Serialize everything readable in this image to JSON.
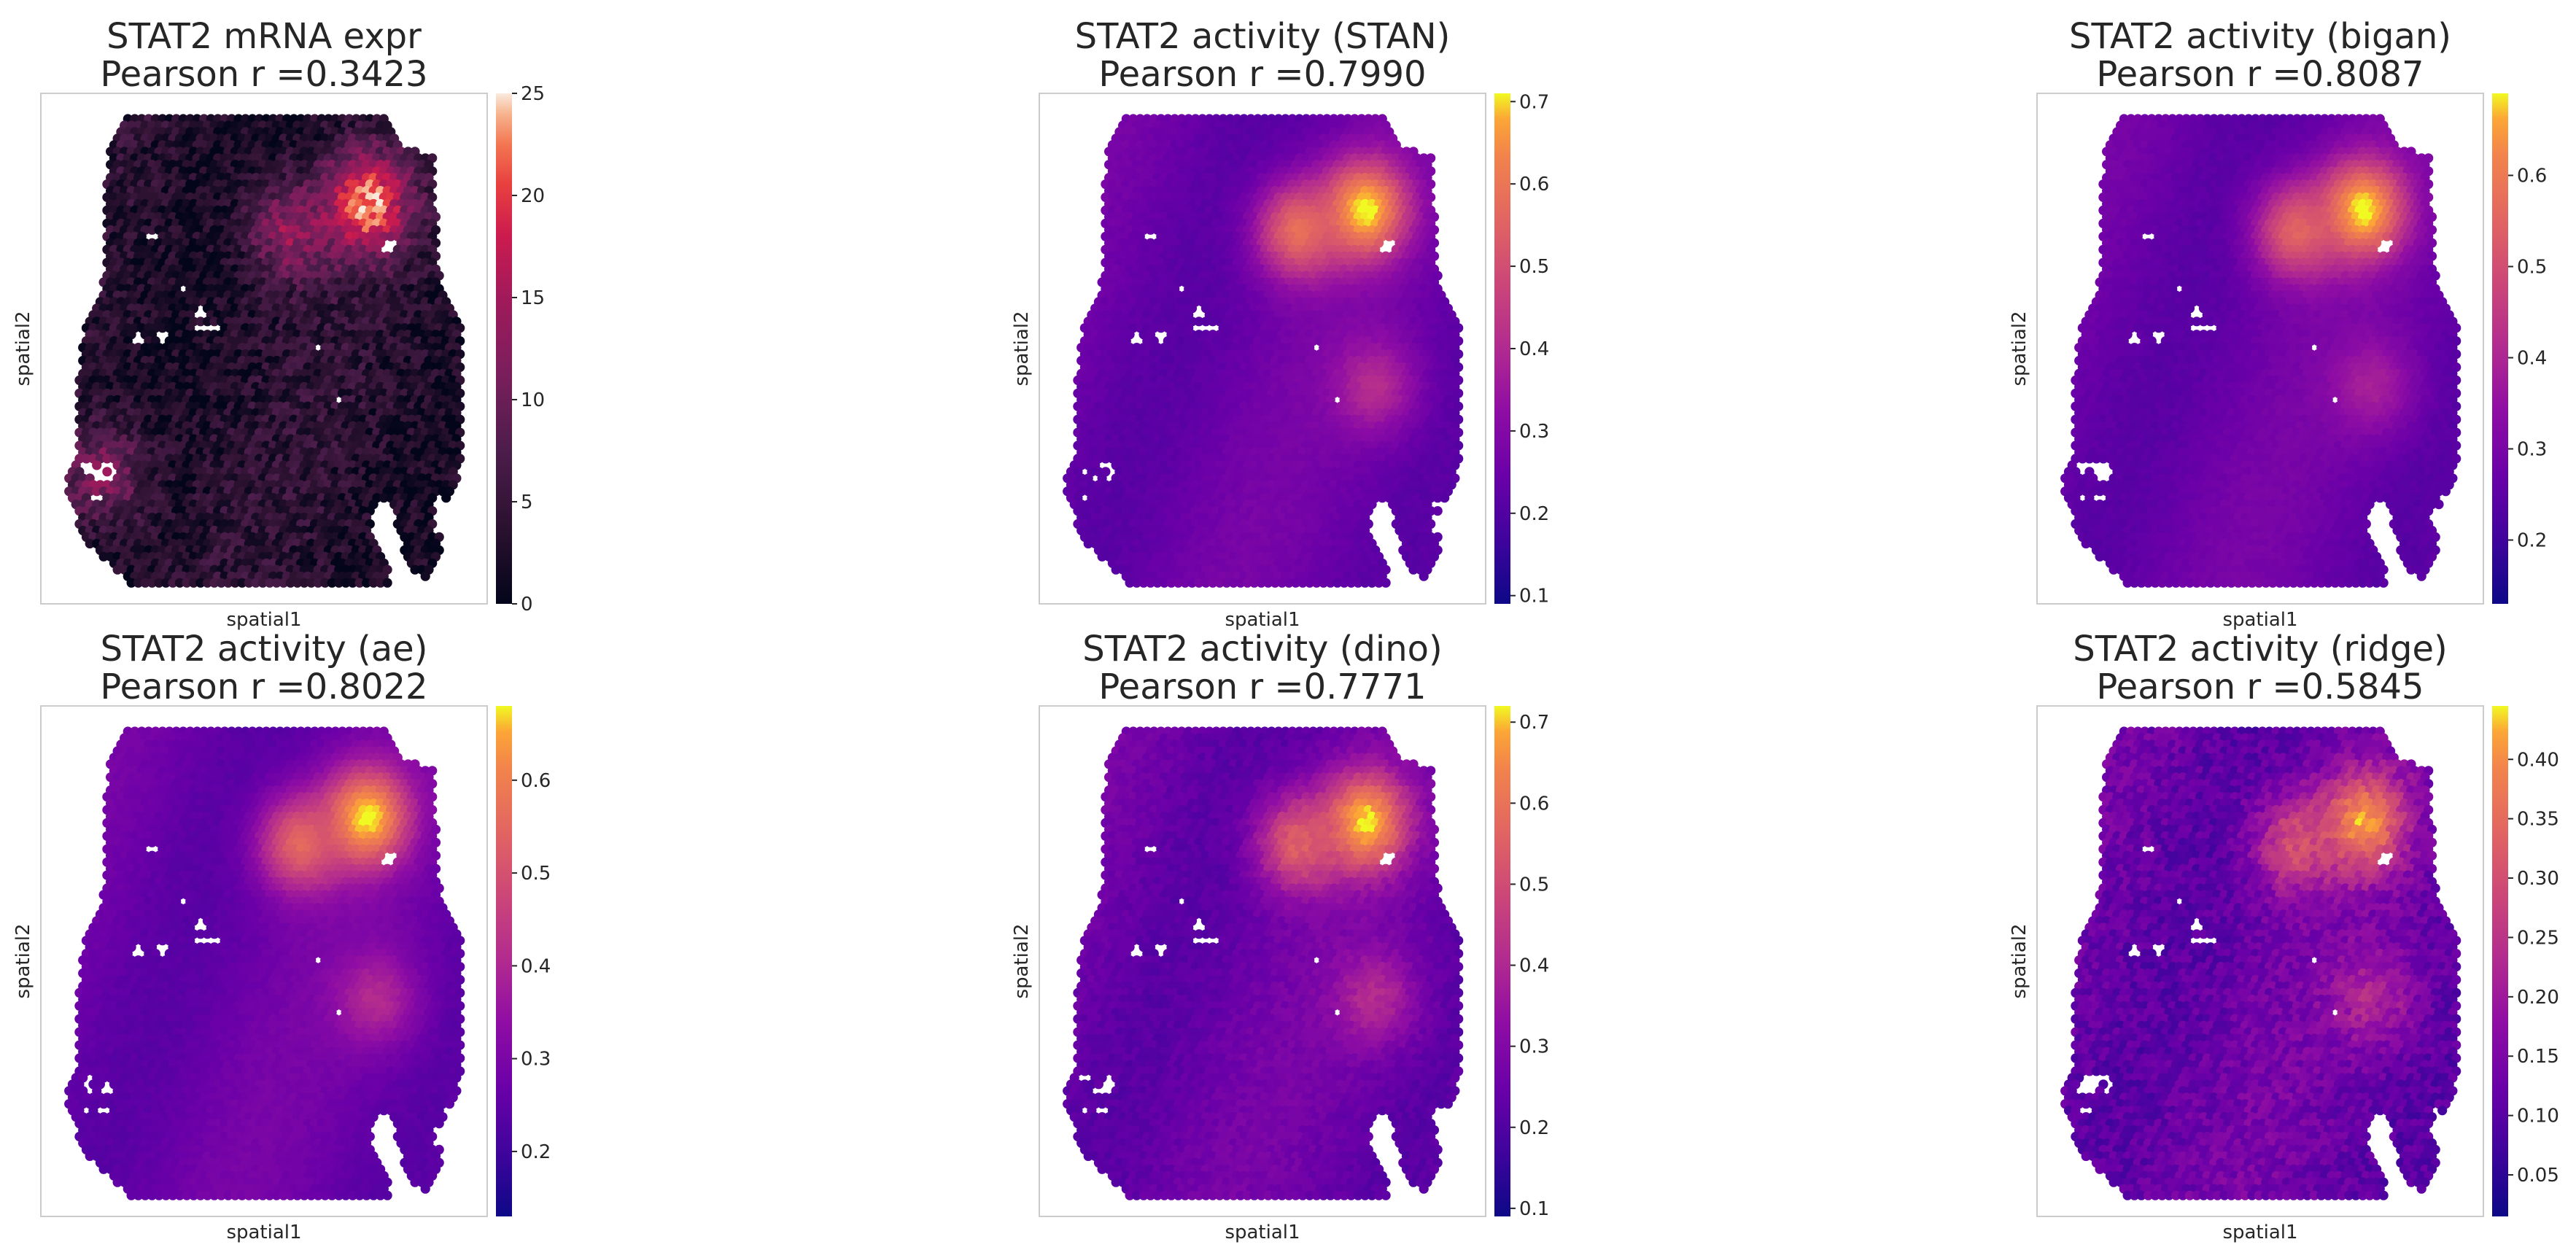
{
  "chart_data": [
    {
      "type": "heatmap",
      "title": "STAT2 mRNA expr",
      "subtitle": "Pearson r =0.3423",
      "xlabel": "spatial1",
      "ylabel": "spatial2",
      "colormap": "rocket",
      "clim": [
        0,
        25
      ],
      "ticks": [
        0,
        5,
        10,
        15,
        20,
        25
      ],
      "tick_labels": [
        "0",
        "5",
        "10",
        "15",
        "20",
        "25"
      ],
      "hotspots": [
        {
          "name": "upper-right spot",
          "x": 0.73,
          "y": 0.22,
          "value": 23
        },
        {
          "name": "upper-mid spot",
          "x": 0.56,
          "y": 0.27,
          "value": 14
        },
        {
          "name": "lower-left edge",
          "x": 0.14,
          "y": 0.75,
          "value": 13
        }
      ],
      "grid": false
    },
    {
      "type": "heatmap",
      "title": "STAT2 activity (STAN)",
      "subtitle": "Pearson r =0.7990",
      "xlabel": "spatial1",
      "ylabel": "spatial2",
      "colormap": "plasma",
      "clim": [
        0.09,
        0.71
      ],
      "ticks": [
        0.1,
        0.2,
        0.3,
        0.4,
        0.5,
        0.6,
        0.7
      ],
      "tick_labels": [
        "0.1",
        "0.2",
        "0.3",
        "0.4",
        "0.5",
        "0.6",
        "0.7"
      ],
      "hotspots": [
        {
          "name": "upper-right spot",
          "x": 0.73,
          "y": 0.23,
          "value": 0.7
        },
        {
          "name": "upper-mid spot",
          "x": 0.58,
          "y": 0.27,
          "value": 0.58
        },
        {
          "name": "mid-right spot",
          "x": 0.76,
          "y": 0.58,
          "value": 0.4
        }
      ],
      "grid": false
    },
    {
      "type": "heatmap",
      "title": "STAT2 activity (bigan)",
      "subtitle": "Pearson r =0.8087",
      "xlabel": "spatial1",
      "ylabel": "spatial2",
      "colormap": "plasma",
      "clim": [
        0.13,
        0.69
      ],
      "ticks": [
        0.2,
        0.3,
        0.4,
        0.5,
        0.6
      ],
      "tick_labels": [
        "0.2",
        "0.3",
        "0.4",
        "0.5",
        "0.6"
      ],
      "hotspots": [
        {
          "name": "upper-right spot",
          "x": 0.73,
          "y": 0.23,
          "value": 0.68
        },
        {
          "name": "upper-mid spot",
          "x": 0.58,
          "y": 0.27,
          "value": 0.55
        },
        {
          "name": "mid-right spot",
          "x": 0.76,
          "y": 0.58,
          "value": 0.38
        }
      ],
      "grid": false
    },
    {
      "type": "heatmap",
      "title": "STAT2 activity (ae)",
      "subtitle": "Pearson r =0.8022",
      "xlabel": "spatial1",
      "ylabel": "spatial2",
      "colormap": "plasma",
      "clim": [
        0.13,
        0.68
      ],
      "ticks": [
        0.2,
        0.3,
        0.4,
        0.5,
        0.6
      ],
      "tick_labels": [
        "0.2",
        "0.3",
        "0.4",
        "0.5",
        "0.6"
      ],
      "hotspots": [
        {
          "name": "upper-right spot",
          "x": 0.73,
          "y": 0.22,
          "value": 0.67
        },
        {
          "name": "upper-mid spot",
          "x": 0.58,
          "y": 0.27,
          "value": 0.55
        },
        {
          "name": "mid-right spot",
          "x": 0.76,
          "y": 0.58,
          "value": 0.4
        }
      ],
      "grid": false
    },
    {
      "type": "heatmap",
      "title": "STAT2 activity (dino)",
      "subtitle": "Pearson r =0.7771",
      "xlabel": "spatial1",
      "ylabel": "spatial2",
      "colormap": "plasma",
      "clim": [
        0.09,
        0.72
      ],
      "ticks": [
        0.1,
        0.2,
        0.3,
        0.4,
        0.5,
        0.6,
        0.7
      ],
      "tick_labels": [
        "0.1",
        "0.2",
        "0.3",
        "0.4",
        "0.5",
        "0.6",
        "0.7"
      ],
      "hotspots": [
        {
          "name": "upper-right spot",
          "x": 0.73,
          "y": 0.23,
          "value": 0.7
        },
        {
          "name": "upper-mid spot",
          "x": 0.58,
          "y": 0.27,
          "value": 0.55
        },
        {
          "name": "mid-right spot",
          "x": 0.76,
          "y": 0.58,
          "value": 0.4
        }
      ],
      "grid": false
    },
    {
      "type": "heatmap",
      "title": "STAT2 activity (ridge)",
      "subtitle": "Pearson r =0.5845",
      "xlabel": "spatial1",
      "ylabel": "spatial2",
      "colormap": "plasma",
      "clim": [
        0.015,
        0.445
      ],
      "ticks": [
        0.05,
        0.1,
        0.15,
        0.2,
        0.25,
        0.3,
        0.35,
        0.4
      ],
      "tick_labels": [
        "0.05",
        "0.10",
        "0.15",
        "0.20",
        "0.25",
        "0.30",
        "0.35",
        "0.40"
      ],
      "hotspots": [
        {
          "name": "upper-right spot",
          "x": 0.73,
          "y": 0.23,
          "value": 0.4
        },
        {
          "name": "upper-mid spot",
          "x": 0.58,
          "y": 0.27,
          "value": 0.3
        },
        {
          "name": "mid-right spot",
          "x": 0.76,
          "y": 0.58,
          "value": 0.22
        }
      ],
      "grid": false
    }
  ]
}
